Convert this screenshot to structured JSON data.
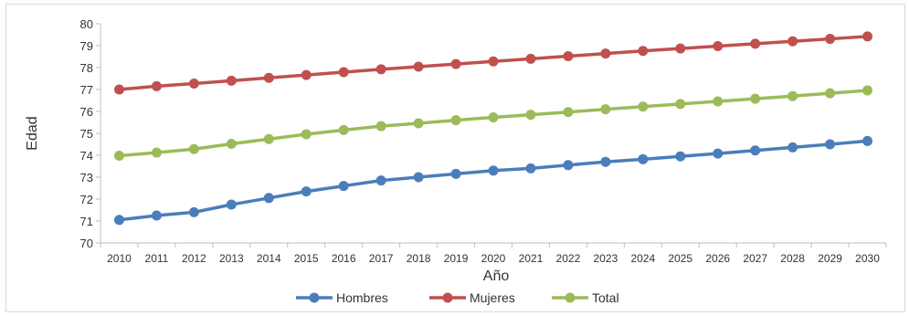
{
  "chart_data": {
    "type": "line",
    "xlabel": "Año",
    "ylabel": "Edad",
    "ylim": [
      70,
      80
    ],
    "yticks": [
      70,
      71,
      72,
      73,
      74,
      75,
      76,
      77,
      78,
      79,
      80
    ],
    "x": [
      "2010",
      "2011",
      "2012",
      "2013",
      "2014",
      "2015",
      "2016",
      "2017",
      "2018",
      "2019",
      "2020",
      "2021",
      "2022",
      "2023",
      "2024",
      "2025",
      "2026",
      "2027",
      "2028",
      "2029",
      "2030"
    ],
    "grid": false,
    "legend": "bottom",
    "series": [
      {
        "name": "Hombres",
        "color": "#4a7ebb",
        "values": [
          71.05,
          71.25,
          71.4,
          71.75,
          72.05,
          72.35,
          72.6,
          72.85,
          73.0,
          73.15,
          73.3,
          73.4,
          73.55,
          73.7,
          73.82,
          73.95,
          74.08,
          74.22,
          74.36,
          74.5,
          74.65
        ]
      },
      {
        "name": "Mujeres",
        "color": "#c0504d",
        "values": [
          77.0,
          77.15,
          77.27,
          77.4,
          77.53,
          77.66,
          77.79,
          77.92,
          78.04,
          78.16,
          78.28,
          78.4,
          78.52,
          78.64,
          78.76,
          78.87,
          78.98,
          79.09,
          79.2,
          79.31,
          79.42
        ]
      },
      {
        "name": "Total",
        "color": "#9bbb59",
        "values": [
          73.98,
          74.12,
          74.28,
          74.52,
          74.74,
          74.96,
          75.15,
          75.33,
          75.46,
          75.6,
          75.73,
          75.85,
          75.97,
          76.1,
          76.22,
          76.34,
          76.46,
          76.58,
          76.7,
          76.83,
          76.96
        ]
      }
    ]
  }
}
